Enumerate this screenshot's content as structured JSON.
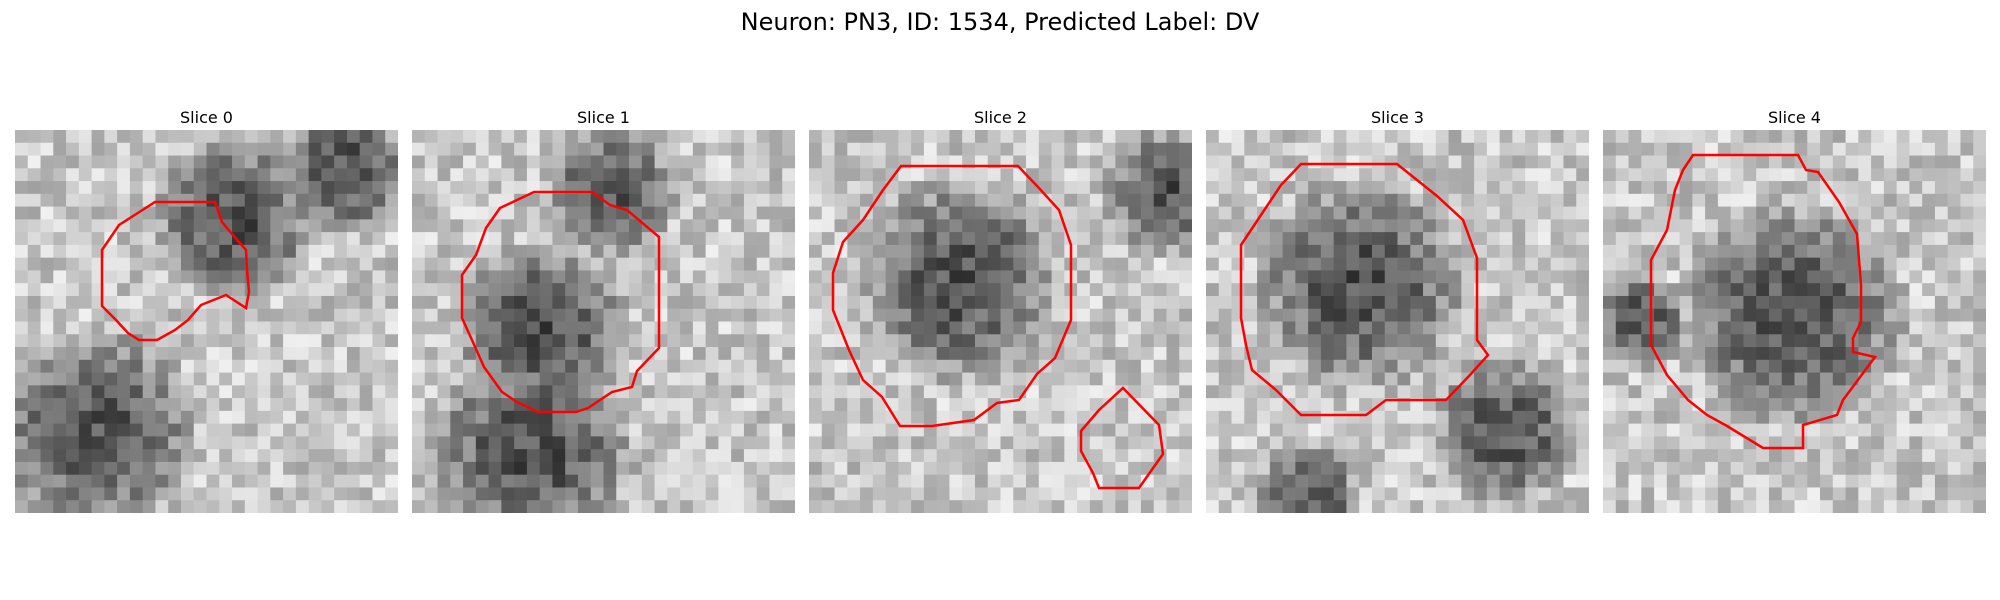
{
  "figure": {
    "title": "Neuron: PN3, ID: 1534, Predicted Label: DV",
    "contour_color": "#ff0000"
  },
  "panels": [
    {
      "title": "Slice 0",
      "noise_seed": 11,
      "contour_count": 1
    },
    {
      "title": "Slice 1",
      "noise_seed": 23,
      "contour_count": 1
    },
    {
      "title": "Slice 2",
      "noise_seed": 37,
      "contour_count": 2
    },
    {
      "title": "Slice 3",
      "noise_seed": 41,
      "contour_count": 1
    },
    {
      "title": "Slice 4",
      "noise_seed": 59,
      "contour_count": 1
    }
  ]
}
